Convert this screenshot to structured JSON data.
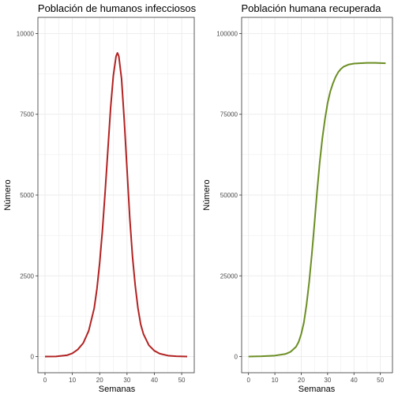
{
  "chart_data": [
    {
      "type": "line",
      "title": "Población de humanos infecciosos",
      "xlabel": "Semanas",
      "ylabel": "Número",
      "xlim": [
        -2.6,
        54.6
      ],
      "ylim": [
        -500,
        10500
      ],
      "xticks": [
        0,
        10,
        20,
        30,
        40,
        50
      ],
      "yticks": [
        0,
        2500,
        5000,
        7500,
        10000
      ],
      "grid": true,
      "legend": "none",
      "series": [
        {
          "color": "#b22222",
          "x": [
            0,
            4,
            8,
            10,
            12,
            14,
            16,
            18,
            19,
            20,
            21,
            22,
            23,
            24,
            25,
            26,
            26.5,
            27,
            28,
            29,
            30,
            31,
            32,
            33,
            34,
            35,
            36,
            38,
            40,
            42,
            45,
            48,
            52
          ],
          "y": [
            0,
            5,
            40,
            100,
            220,
            420,
            800,
            1500,
            2100,
            2900,
            3900,
            5100,
            6400,
            7700,
            8700,
            9300,
            9400,
            9300,
            8600,
            7300,
            5800,
            4300,
            3100,
            2200,
            1500,
            1000,
            700,
            350,
            180,
            90,
            30,
            10,
            0
          ]
        }
      ]
    },
    {
      "type": "line",
      "title": "Población humana recuperada",
      "xlabel": "Semanas",
      "ylabel": "Número",
      "xlim": [
        -2.6,
        54.6
      ],
      "ylim": [
        -5000,
        105000
      ],
      "xticks": [
        0,
        10,
        20,
        30,
        40,
        50
      ],
      "yticks": [
        0,
        25000,
        50000,
        75000,
        100000
      ],
      "grid": true,
      "legend": "none",
      "series": [
        {
          "color": "#6b8e23",
          "x": [
            0,
            5,
            10,
            14,
            16,
            18,
            19,
            20,
            21,
            22,
            23,
            24,
            25,
            26,
            27,
            28,
            29,
            30,
            31,
            32,
            33,
            34,
            35,
            36,
            38,
            40,
            42,
            45,
            48,
            52
          ],
          "y": [
            0,
            100,
            300,
            800,
            1500,
            3000,
            4500,
            7000,
            10500,
            16000,
            23000,
            31500,
            41000,
            51000,
            60000,
            67500,
            73500,
            78500,
            82000,
            84500,
            86500,
            88000,
            89000,
            89700,
            90400,
            90700,
            90800,
            90900,
            90900,
            90800
          ]
        }
      ]
    }
  ]
}
